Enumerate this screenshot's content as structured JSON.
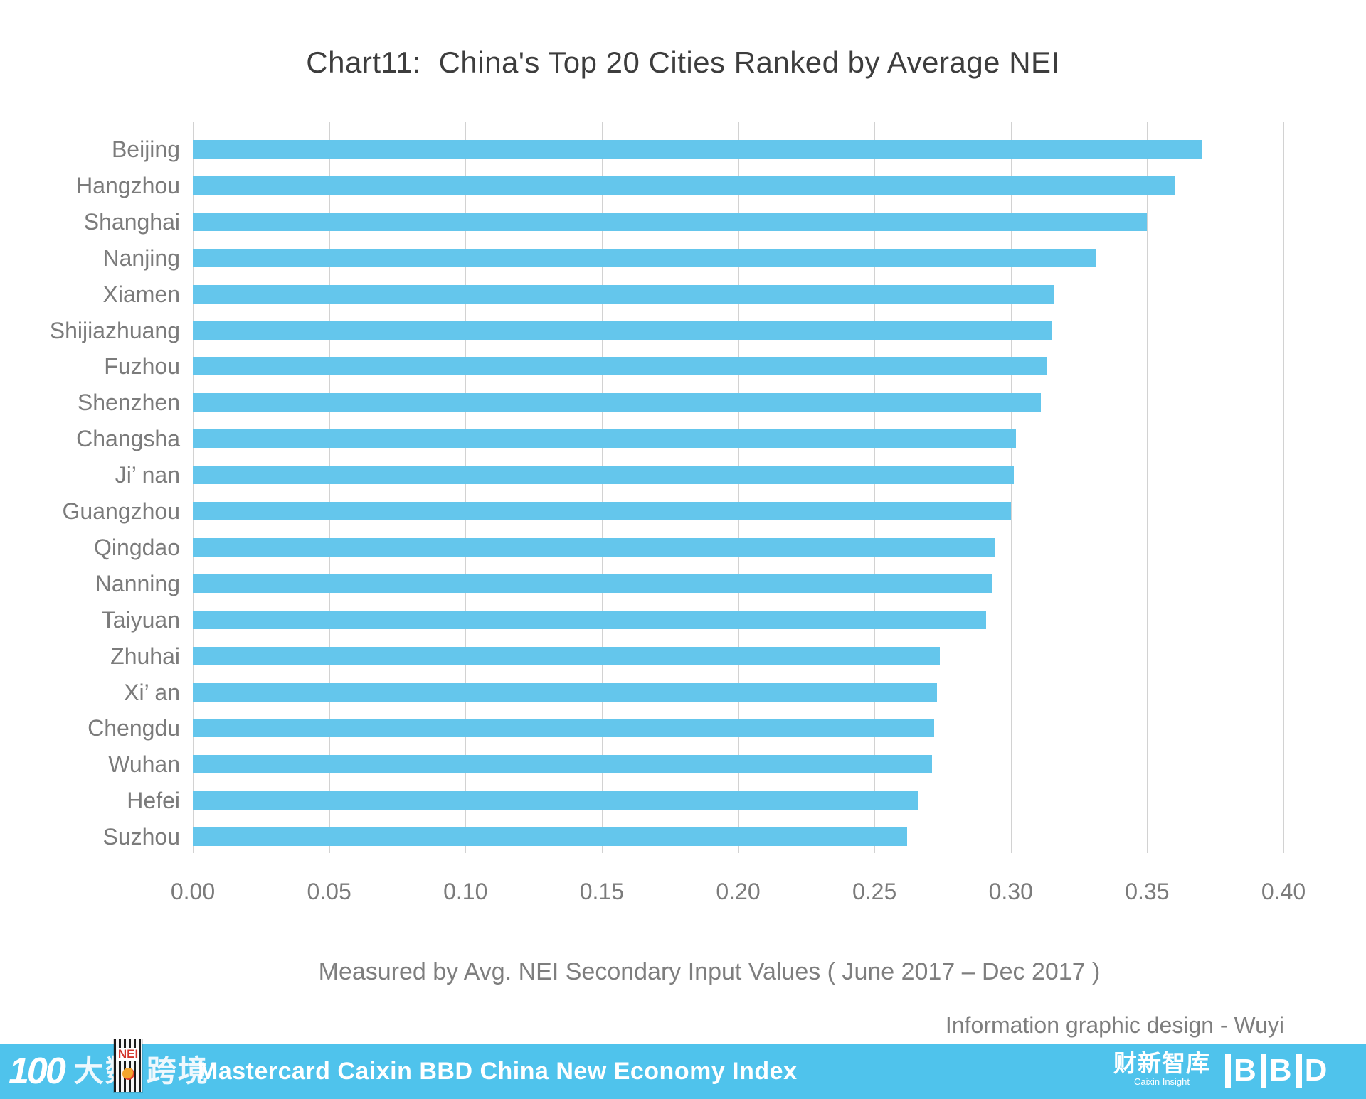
{
  "title": "Chart11:  China's Top 20 Cities Ranked by Average NEI",
  "chart_data": {
    "type": "bar",
    "orientation": "horizontal",
    "title": "Chart11:  China's Top 20 Cities Ranked by Average NEI",
    "categories": [
      "Beijing",
      "Hangzhou",
      "Shanghai",
      "Nanjing",
      "Xiamen",
      "Shijiazhuang",
      "Fuzhou",
      "Shenzhen",
      "Changsha",
      "Ji’ nan",
      "Guangzhou",
      "Qingdao",
      "Nanning",
      "Taiyuan",
      "Zhuhai",
      "Xi’ an",
      "Chengdu",
      "Wuhan",
      "Hefei",
      "Suzhou"
    ],
    "values": [
      0.37,
      0.36,
      0.35,
      0.331,
      0.316,
      0.315,
      0.313,
      0.311,
      0.302,
      0.301,
      0.3,
      0.294,
      0.293,
      0.291,
      0.274,
      0.273,
      0.272,
      0.271,
      0.266,
      0.262
    ],
    "xlabel": "Measured by Avg. NEI Secondary Input Values ( June 2017 – Dec 2017 )",
    "ylabel": "",
    "xlim": [
      0,
      0.4
    ],
    "tick_step": 0.05,
    "tick_labels": [
      "0.00",
      "0.05",
      "0.10",
      "0.15",
      "0.20",
      "0.25",
      "0.30",
      "0.35",
      "0.40"
    ],
    "grid": true,
    "legend": false,
    "bar_color": "#64c6ec",
    "gridline_color": "#d2d2d2"
  },
  "caption": "Measured by Avg. NEI Secondary Input Values ( June 2017 – Dec 2017 )",
  "credit": "Information graphic design - Wuyi",
  "footer": {
    "bg_color": "#4fc3ec",
    "title": "Mastercard Caixin BBD China New Economy Index",
    "logo_100": "100",
    "logo_cn_left": "大数",
    "logo_cn_right": "跨境",
    "nei_label": "NEI",
    "caixin_cn": "财新智库",
    "caixin_en": "Caixin Insight",
    "bbd": "BBD"
  }
}
